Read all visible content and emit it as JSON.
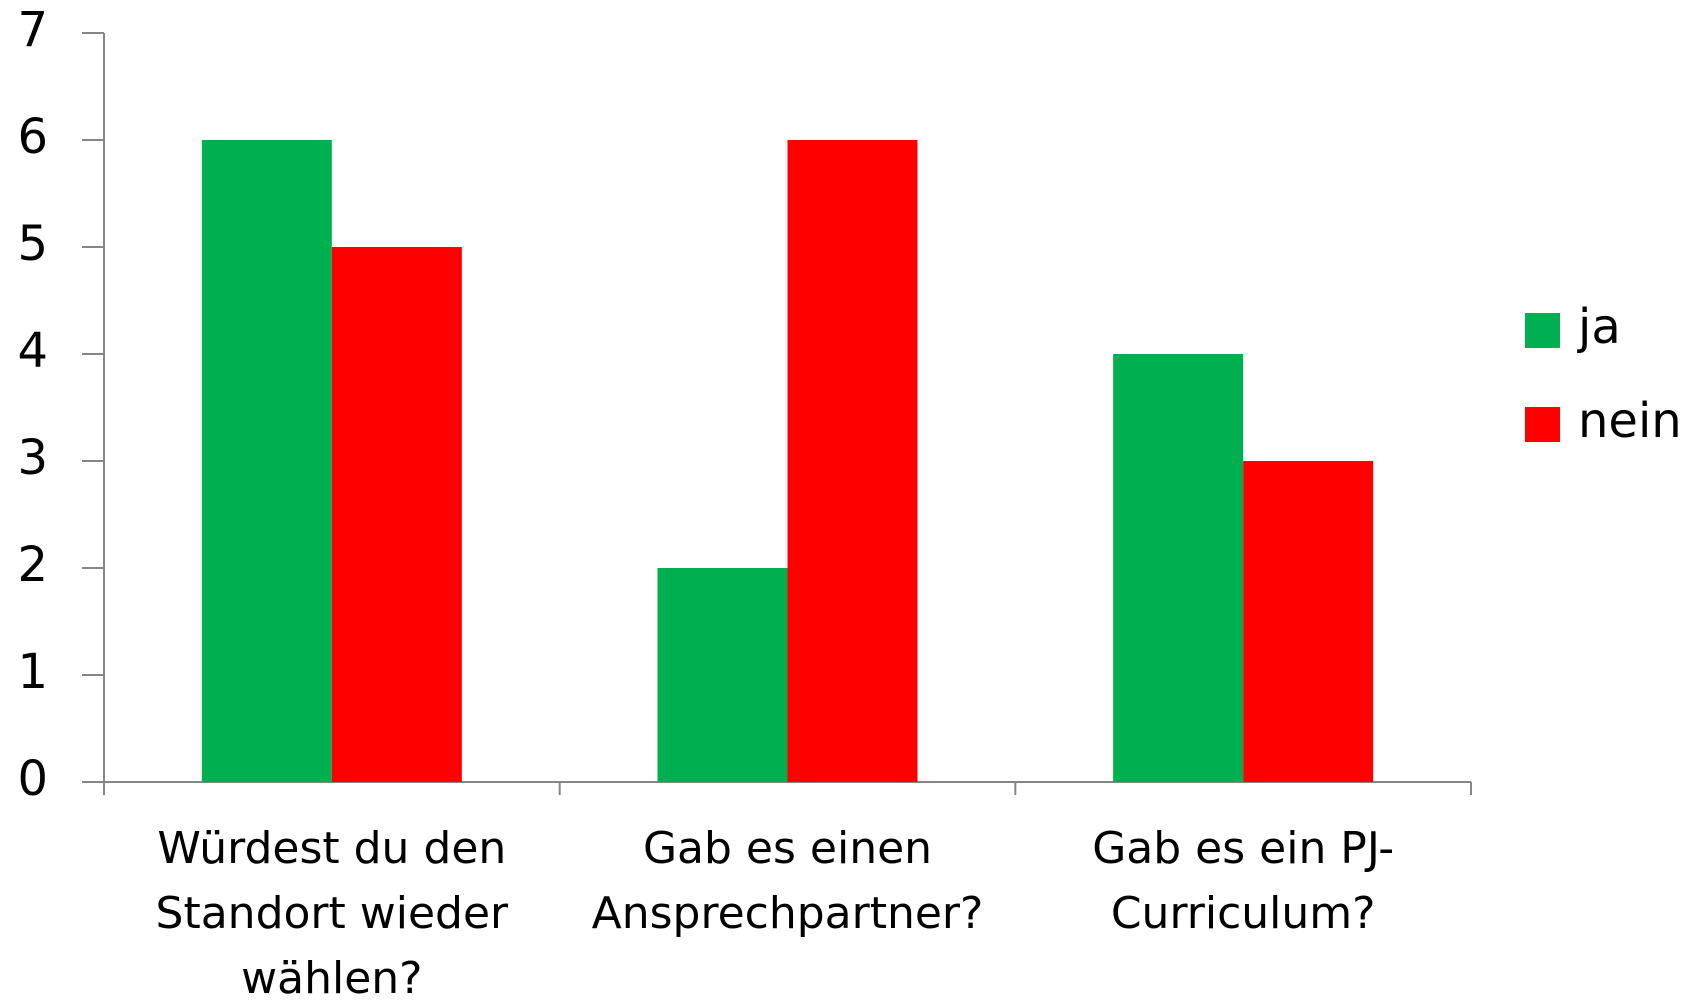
{
  "chart_data": {
    "type": "bar",
    "categories": [
      [
        "Würdest du den",
        "Standort wieder",
        "wählen?"
      ],
      [
        "Gab es einen",
        "Ansprechpartner?"
      ],
      [
        "Gab es ein PJ-",
        "Curriculum?"
      ]
    ],
    "series": [
      {
        "name": "ja",
        "color": "#00b050",
        "values": [
          6,
          2,
          4
        ]
      },
      {
        "name": "nein",
        "color": "#ff0000",
        "values": [
          5,
          6,
          3
        ]
      }
    ],
    "ylim": [
      0,
      7
    ],
    "yticks": [
      0,
      1,
      2,
      3,
      4,
      5,
      6,
      7
    ],
    "grid": false,
    "legend": "right"
  }
}
